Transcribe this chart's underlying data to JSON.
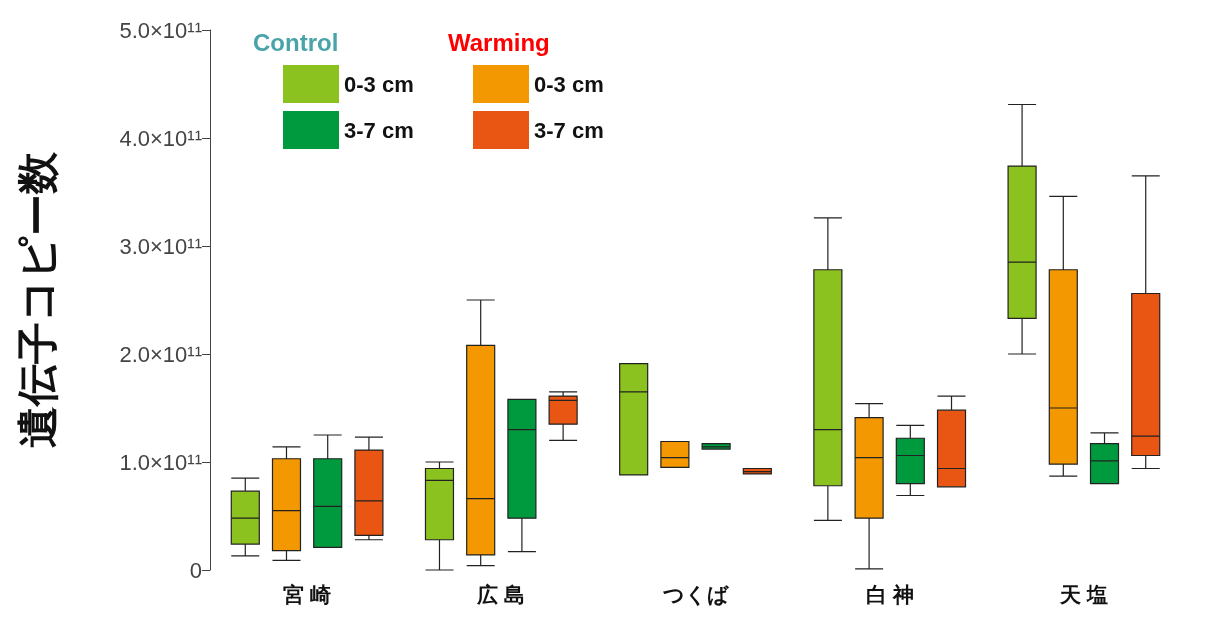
{
  "chart_data": {
    "type": "box",
    "ylabel": "遺伝子コピー数",
    "categories": [
      "宮 崎",
      "広 島",
      "つくば",
      "白 神",
      "天 塩"
    ],
    "annotations": [
      "Control",
      "Warming"
    ],
    "ylim": [
      0,
      500000000000.0
    ],
    "yticks": [
      0,
      {
        "value": 100000000000.0,
        "label": "1.0×10¹¹"
      },
      {
        "value": 200000000000.0,
        "label": "2.0×10¹¹"
      },
      {
        "value": 300000000000.0,
        "label": "3.0×10¹¹"
      },
      {
        "value": 400000000000.0,
        "label": "4.0×10¹¹"
      },
      {
        "value": 500000000000.0,
        "label": "5.0×10¹¹"
      }
    ],
    "grid": false,
    "legend": "top left",
    "series": [
      {
        "name": "0-3 cm",
        "color": "#8cc21f",
        "boxes": [
          {
            "low": 13000000000.0,
            "q1": 24000000000.0,
            "median": 48000000000.0,
            "q3": 73000000000.0,
            "high": 85000000000.0
          },
          {
            "low": 0,
            "q1": 28000000000.0,
            "median": 83000000000.0,
            "q3": 94000000000.0,
            "high": 100000000000.0
          },
          {
            "low": 88000000000.0,
            "q1": 88000000000.0,
            "median": 165000000000.0,
            "q3": 191000000000.0,
            "high": 191000000000.0
          },
          {
            "low": 46000000000.0,
            "q1": 78000000000.0,
            "median": 130000000000.0,
            "q3": 278000000000.0,
            "high": 326000000000.0
          },
          {
            "low": 200000000000.0,
            "q1": 233000000000.0,
            "median": 285000000000.0,
            "q3": 374000000000.0,
            "high": 431000000000.0
          }
        ]
      },
      {
        "name": "0-3 cm",
        "color": "#f39800",
        "boxes": [
          {
            "low": 9000000000.0,
            "q1": 18000000000.0,
            "median": 55000000000.0,
            "q3": 103000000000.0,
            "high": 114000000000.0
          },
          {
            "low": 4000000000.0,
            "q1": 14000000000.0,
            "median": 66000000000.0,
            "q3": 208000000000.0,
            "high": 250000000000.0
          },
          {
            "low": 95000000000.0,
            "q1": 95000000000.0,
            "median": 104000000000.0,
            "q3": 119000000000.0,
            "high": 119000000000.0
          },
          {
            "low": 1000000000.0,
            "q1": 48000000000.0,
            "median": 104000000000.0,
            "q3": 141000000000.0,
            "high": 154000000000.0
          },
          {
            "low": 87000000000.0,
            "q1": 98000000000.0,
            "median": 150000000000.0,
            "q3": 278000000000.0,
            "high": 346000000000.0
          }
        ]
      },
      {
        "name": "3-7 cm",
        "color": "#009a3e",
        "boxes": [
          {
            "low": 21000000000.0,
            "q1": 21000000000.0,
            "median": 59000000000.0,
            "q3": 103000000000.0,
            "high": 125000000000.0
          },
          {
            "low": 17000000000.0,
            "q1": 48000000000.0,
            "median": 130000000000.0,
            "q3": 158000000000.0,
            "high": 158000000000.0
          },
          {
            "low": 112000000000.0,
            "q1": 112000000000.0,
            "median": 114000000000.0,
            "q3": 117000000000.0,
            "high": 117000000000.0
          },
          {
            "low": 69000000000.0,
            "q1": 80000000000.0,
            "median": 106000000000.0,
            "q3": 122000000000.0,
            "high": 134000000000.0
          },
          {
            "low": 80000000000.0,
            "q1": 80000000000.0,
            "median": 101000000000.0,
            "q3": 117000000000.0,
            "high": 127000000000.0
          }
        ]
      },
      {
        "name": "3-7 cm",
        "color": "#e95513",
        "boxes": [
          {
            "low": 28000000000.0,
            "q1": 32000000000.0,
            "median": 64000000000.0,
            "q3": 111000000000.0,
            "high": 123000000000.0
          },
          {
            "low": 120000000000.0,
            "q1": 135000000000.0,
            "median": 157000000000.0,
            "q3": 161000000000.0,
            "high": 165000000000.0
          },
          {
            "low": 89000000000.0,
            "q1": 89000000000.0,
            "median": 91000000000.0,
            "q3": 94000000000.0,
            "high": 94000000000.0
          },
          {
            "low": 77000000000.0,
            "q1": 77000000000.0,
            "median": 94000000000.0,
            "q3": 148000000000.0,
            "high": 161000000000.0
          },
          {
            "low": 94000000000.0,
            "q1": 106000000000.0,
            "median": 124000000000.0,
            "q3": 256000000000.0,
            "high": 365000000000.0
          }
        ]
      }
    ]
  }
}
